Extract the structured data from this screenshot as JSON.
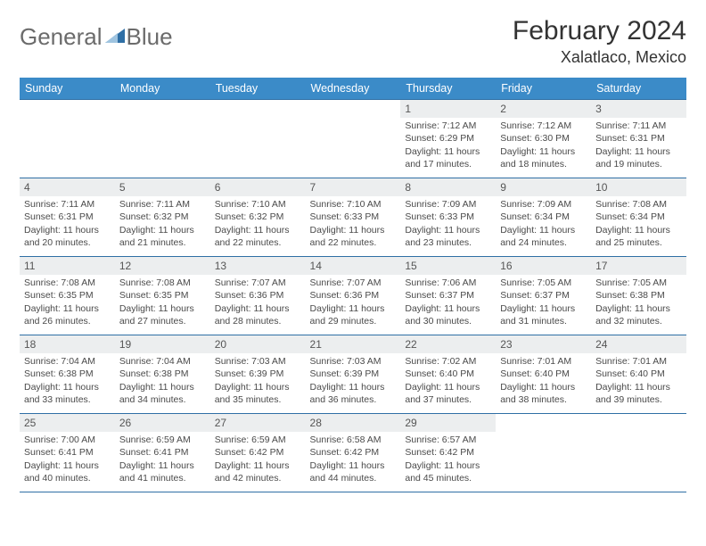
{
  "brand": {
    "part1": "General",
    "part2": "Blue"
  },
  "title": "February 2024",
  "location": "Xalatlaco, Mexico",
  "colors": {
    "header_bg": "#3b8bc8",
    "header_text": "#ffffff",
    "daynum_bg": "#eceeef",
    "border": "#2f6fa5",
    "logo_gray": "#6b6b6b",
    "logo_blue": "#2f6fa5",
    "text": "#4a4a4a"
  },
  "day_headers": [
    "Sunday",
    "Monday",
    "Tuesday",
    "Wednesday",
    "Thursday",
    "Friday",
    "Saturday"
  ],
  "weeks": [
    [
      {
        "n": "",
        "sr": "",
        "ss": "",
        "dl": ""
      },
      {
        "n": "",
        "sr": "",
        "ss": "",
        "dl": ""
      },
      {
        "n": "",
        "sr": "",
        "ss": "",
        "dl": ""
      },
      {
        "n": "",
        "sr": "",
        "ss": "",
        "dl": ""
      },
      {
        "n": "1",
        "sr": "Sunrise: 7:12 AM",
        "ss": "Sunset: 6:29 PM",
        "dl": "Daylight: 11 hours and 17 minutes."
      },
      {
        "n": "2",
        "sr": "Sunrise: 7:12 AM",
        "ss": "Sunset: 6:30 PM",
        "dl": "Daylight: 11 hours and 18 minutes."
      },
      {
        "n": "3",
        "sr": "Sunrise: 7:11 AM",
        "ss": "Sunset: 6:31 PM",
        "dl": "Daylight: 11 hours and 19 minutes."
      }
    ],
    [
      {
        "n": "4",
        "sr": "Sunrise: 7:11 AM",
        "ss": "Sunset: 6:31 PM",
        "dl": "Daylight: 11 hours and 20 minutes."
      },
      {
        "n": "5",
        "sr": "Sunrise: 7:11 AM",
        "ss": "Sunset: 6:32 PM",
        "dl": "Daylight: 11 hours and 21 minutes."
      },
      {
        "n": "6",
        "sr": "Sunrise: 7:10 AM",
        "ss": "Sunset: 6:32 PM",
        "dl": "Daylight: 11 hours and 22 minutes."
      },
      {
        "n": "7",
        "sr": "Sunrise: 7:10 AM",
        "ss": "Sunset: 6:33 PM",
        "dl": "Daylight: 11 hours and 22 minutes."
      },
      {
        "n": "8",
        "sr": "Sunrise: 7:09 AM",
        "ss": "Sunset: 6:33 PM",
        "dl": "Daylight: 11 hours and 23 minutes."
      },
      {
        "n": "9",
        "sr": "Sunrise: 7:09 AM",
        "ss": "Sunset: 6:34 PM",
        "dl": "Daylight: 11 hours and 24 minutes."
      },
      {
        "n": "10",
        "sr": "Sunrise: 7:08 AM",
        "ss": "Sunset: 6:34 PM",
        "dl": "Daylight: 11 hours and 25 minutes."
      }
    ],
    [
      {
        "n": "11",
        "sr": "Sunrise: 7:08 AM",
        "ss": "Sunset: 6:35 PM",
        "dl": "Daylight: 11 hours and 26 minutes."
      },
      {
        "n": "12",
        "sr": "Sunrise: 7:08 AM",
        "ss": "Sunset: 6:35 PM",
        "dl": "Daylight: 11 hours and 27 minutes."
      },
      {
        "n": "13",
        "sr": "Sunrise: 7:07 AM",
        "ss": "Sunset: 6:36 PM",
        "dl": "Daylight: 11 hours and 28 minutes."
      },
      {
        "n": "14",
        "sr": "Sunrise: 7:07 AM",
        "ss": "Sunset: 6:36 PM",
        "dl": "Daylight: 11 hours and 29 minutes."
      },
      {
        "n": "15",
        "sr": "Sunrise: 7:06 AM",
        "ss": "Sunset: 6:37 PM",
        "dl": "Daylight: 11 hours and 30 minutes."
      },
      {
        "n": "16",
        "sr": "Sunrise: 7:05 AM",
        "ss": "Sunset: 6:37 PM",
        "dl": "Daylight: 11 hours and 31 minutes."
      },
      {
        "n": "17",
        "sr": "Sunrise: 7:05 AM",
        "ss": "Sunset: 6:38 PM",
        "dl": "Daylight: 11 hours and 32 minutes."
      }
    ],
    [
      {
        "n": "18",
        "sr": "Sunrise: 7:04 AM",
        "ss": "Sunset: 6:38 PM",
        "dl": "Daylight: 11 hours and 33 minutes."
      },
      {
        "n": "19",
        "sr": "Sunrise: 7:04 AM",
        "ss": "Sunset: 6:38 PM",
        "dl": "Daylight: 11 hours and 34 minutes."
      },
      {
        "n": "20",
        "sr": "Sunrise: 7:03 AM",
        "ss": "Sunset: 6:39 PM",
        "dl": "Daylight: 11 hours and 35 minutes."
      },
      {
        "n": "21",
        "sr": "Sunrise: 7:03 AM",
        "ss": "Sunset: 6:39 PM",
        "dl": "Daylight: 11 hours and 36 minutes."
      },
      {
        "n": "22",
        "sr": "Sunrise: 7:02 AM",
        "ss": "Sunset: 6:40 PM",
        "dl": "Daylight: 11 hours and 37 minutes."
      },
      {
        "n": "23",
        "sr": "Sunrise: 7:01 AM",
        "ss": "Sunset: 6:40 PM",
        "dl": "Daylight: 11 hours and 38 minutes."
      },
      {
        "n": "24",
        "sr": "Sunrise: 7:01 AM",
        "ss": "Sunset: 6:40 PM",
        "dl": "Daylight: 11 hours and 39 minutes."
      }
    ],
    [
      {
        "n": "25",
        "sr": "Sunrise: 7:00 AM",
        "ss": "Sunset: 6:41 PM",
        "dl": "Daylight: 11 hours and 40 minutes."
      },
      {
        "n": "26",
        "sr": "Sunrise: 6:59 AM",
        "ss": "Sunset: 6:41 PM",
        "dl": "Daylight: 11 hours and 41 minutes."
      },
      {
        "n": "27",
        "sr": "Sunrise: 6:59 AM",
        "ss": "Sunset: 6:42 PM",
        "dl": "Daylight: 11 hours and 42 minutes."
      },
      {
        "n": "28",
        "sr": "Sunrise: 6:58 AM",
        "ss": "Sunset: 6:42 PM",
        "dl": "Daylight: 11 hours and 44 minutes."
      },
      {
        "n": "29",
        "sr": "Sunrise: 6:57 AM",
        "ss": "Sunset: 6:42 PM",
        "dl": "Daylight: 11 hours and 45 minutes."
      },
      {
        "n": "",
        "sr": "",
        "ss": "",
        "dl": ""
      },
      {
        "n": "",
        "sr": "",
        "ss": "",
        "dl": ""
      }
    ]
  ]
}
